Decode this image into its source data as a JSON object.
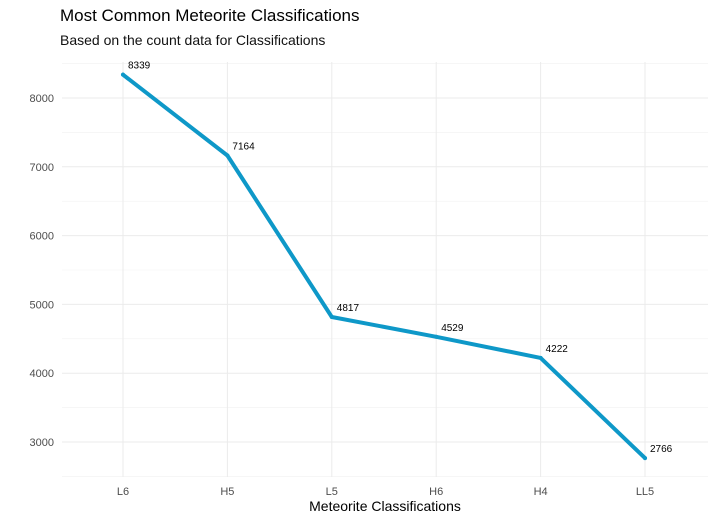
{
  "chart_data": {
    "type": "line",
    "title": "Most Common Meteorite Classifications",
    "subtitle": "Based on the count data for Classifications",
    "xlabel": "Meteorite Classifications",
    "ylabel": "",
    "categories": [
      "L6",
      "H5",
      "L5",
      "H6",
      "H4",
      "LL5"
    ],
    "values": [
      8339,
      7164,
      4817,
      4529,
      4222,
      2766
    ],
    "data_labels": [
      "8339",
      "7164",
      "4817",
      "4529",
      "4222",
      "2766"
    ],
    "yticks": [
      3000,
      4000,
      5000,
      6000,
      7000,
      8000
    ],
    "ytick_labels": [
      "3000",
      "4000",
      "5000",
      "6000",
      "7000",
      "8000"
    ],
    "ylim": [
      2500,
      8500
    ],
    "grid": true,
    "legend": "none",
    "line_color": "#0e98c8"
  }
}
